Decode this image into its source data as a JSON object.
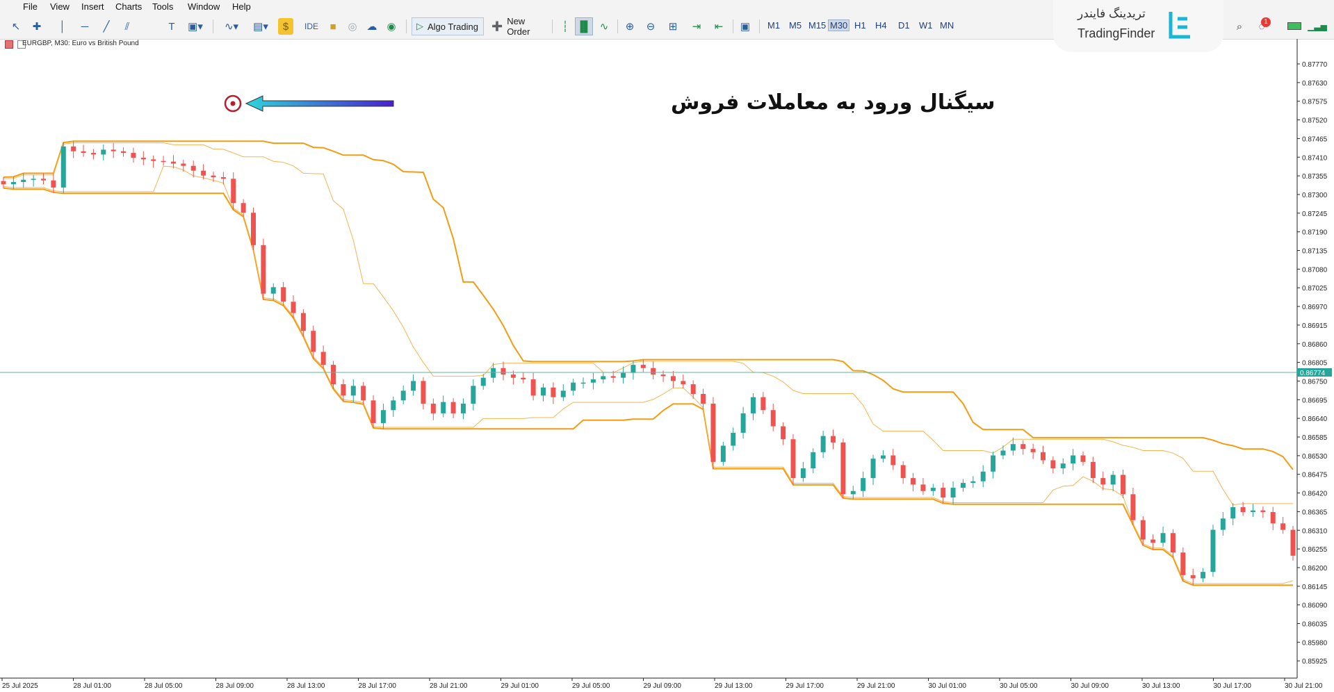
{
  "menu": [
    "File",
    "View",
    "Insert",
    "Charts",
    "Tools",
    "Window",
    "Help"
  ],
  "toolbar": {
    "ide_label": "IDE",
    "algo_label": "Algo Trading",
    "order_label": "New Order",
    "timeframes": [
      "M1",
      "M5",
      "M15",
      "M30",
      "H1",
      "H4",
      "D1",
      "W1",
      "MN"
    ],
    "active_timeframe": "M30",
    "notification_count": "1"
  },
  "logo": {
    "name_fa": "تریدینگ فایندر",
    "name_en": "TradingFinder"
  },
  "chart": {
    "symbol_label": "EURGBP, M30:  Euro vs British Pound",
    "annotation": "سیگنال ورود به معاملات فروش",
    "current_price_label": "0.86774",
    "colors": {
      "bull": "#26a69a",
      "bear": "#ef5350",
      "band": "#f39c12",
      "band_thin": "#f5b450",
      "hline": "#5fb5a0"
    }
  },
  "chart_data": {
    "type": "candlestick",
    "y_ticks": [
      "0.87770",
      "0.87630",
      "0.87575",
      "0.87520",
      "0.87465",
      "0.87410",
      "0.87355",
      "0.87300",
      "0.87245",
      "0.87190",
      "0.87135",
      "0.87080",
      "0.87025",
      "0.86970",
      "0.86915",
      "0.86860",
      "0.86805",
      "0.86750",
      "0.86695",
      "0.86640",
      "0.86585",
      "0.86530",
      "0.86475",
      "0.86420",
      "0.86365",
      "0.86310",
      "0.86255",
      "0.86200",
      "0.86145",
      "0.86090",
      "0.86035",
      "0.85980",
      "0.85925"
    ],
    "x_ticks": [
      "25 Jul 2025",
      "28 Jul 01:00",
      "28 Jul 05:00",
      "28 Jul 09:00",
      "28 Jul 13:00",
      "28 Jul 17:00",
      "28 Jul 21:00",
      "29 Jul 01:00",
      "29 Jul 05:00",
      "29 Jul 09:00",
      "29 Jul 13:00",
      "29 Jul 17:00",
      "29 Jul 21:00",
      "30 Jul 01:00",
      "30 Jul 05:00",
      "30 Jul 09:00",
      "30 Jul 13:00",
      "30 Jul 17:00",
      "30 Jul 21:00"
    ],
    "ylim": [
      0.859,
      0.8779
    ],
    "candles_close": [
      0.87398,
      0.87405,
      0.87412,
      0.87415,
      0.8741,
      0.87388,
      0.87515,
      0.875,
      0.87495,
      0.8749,
      0.87505,
      0.875,
      0.87495,
      0.8748,
      0.87475,
      0.8747,
      0.87468,
      0.87462,
      0.87455,
      0.8744,
      0.87425,
      0.8742,
      0.87415,
      0.8734,
      0.8731,
      0.8721,
      0.8706,
      0.8708,
      0.87035,
      0.87,
      0.86945,
      0.8688,
      0.8684,
      0.8678,
      0.86745,
      0.86775,
      0.8673,
      0.8666,
      0.867,
      0.8673,
      0.8676,
      0.8679,
      0.8672,
      0.8669,
      0.86725,
      0.8669,
      0.8672,
      0.86775,
      0.868,
      0.8683,
      0.8681,
      0.868,
      0.86795,
      0.86745,
      0.8677,
      0.8674,
      0.8676,
      0.86785,
      0.86785,
      0.86795,
      0.86805,
      0.868,
      0.86815,
      0.8684,
      0.8683,
      0.8681,
      0.86805,
      0.8679,
      0.8678,
      0.8675,
      0.8672,
      0.8654,
      0.8659,
      0.8663,
      0.8669,
      0.8674,
      0.867,
      0.8665,
      0.8661,
      0.8649,
      0.8652,
      0.8657,
      0.8662,
      0.866,
      0.8644,
      0.8645,
      0.8649,
      0.8655,
      0.8656,
      0.8653,
      0.8649,
      0.8647,
      0.8645,
      0.8646,
      0.8643,
      0.8646,
      0.86475,
      0.8648,
      0.8651,
      0.8656,
      0.86575,
      0.86595,
      0.8658,
      0.8657,
      0.86545,
      0.8652,
      0.86535,
      0.8656,
      0.8654,
      0.8649,
      0.8647,
      0.865,
      0.8644,
      0.8636,
      0.863,
      0.8629,
      0.8632,
      0.8626,
      0.8619,
      0.8618,
      0.862,
      0.8633,
      0.86365,
      0.864,
      0.86385,
      0.8639,
      0.86385,
      0.8635,
      0.8633,
      0.8625
    ]
  }
}
